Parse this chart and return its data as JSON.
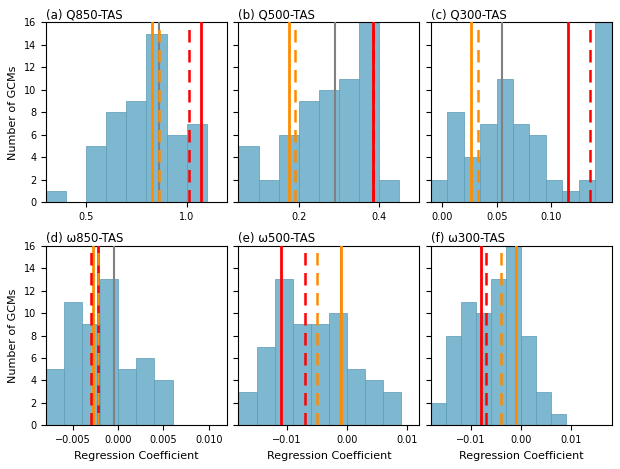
{
  "subplots": [
    {
      "label": "(a) Q850-TAS",
      "xlim": [
        0.3,
        1.2
      ],
      "xticks": [
        0.5,
        1.0
      ],
      "bin_edges": [
        0.3,
        0.4,
        0.5,
        0.6,
        0.7,
        0.8,
        0.9,
        1.0,
        1.1,
        1.2
      ],
      "counts": [
        1,
        0,
        5,
        8,
        9,
        15,
        6,
        7,
        0
      ],
      "vlines": {
        "orange_solid": 0.83,
        "orange_dashed": 0.865,
        "gray": 0.865,
        "red_solid": 1.07,
        "red_dashed": 1.01
      }
    },
    {
      "label": "(b) Q500-TAS",
      "xlim": [
        0.05,
        0.5
      ],
      "xticks": [
        0.2,
        0.4
      ],
      "bin_edges": [
        0.05,
        0.1,
        0.15,
        0.2,
        0.25,
        0.3,
        0.35,
        0.4,
        0.45,
        0.5
      ],
      "counts": [
        5,
        2,
        6,
        9,
        10,
        11,
        16,
        2,
        0
      ],
      "vlines": {
        "orange_solid": 0.175,
        "orange_dashed": 0.19,
        "gray": 0.29,
        "red_solid": 0.385,
        "red_dashed": 0.385
      }
    },
    {
      "label": "(c) Q300-TAS",
      "xlim": [
        -0.01,
        0.155
      ],
      "xticks": [
        0.0,
        0.05,
        0.1
      ],
      "bin_edges": [
        -0.01,
        0.005,
        0.02,
        0.035,
        0.05,
        0.065,
        0.08,
        0.095,
        0.11,
        0.125,
        0.14,
        0.155
      ],
      "counts": [
        2,
        8,
        4,
        7,
        11,
        7,
        6,
        2,
        1,
        2,
        16
      ],
      "vlines": {
        "orange_solid": 0.027,
        "orange_dashed": 0.033,
        "gray": 0.055,
        "red_solid": 0.115,
        "red_dashed": 0.135
      }
    },
    {
      "label": "(d) ω850-TAS",
      "xlim": [
        -0.008,
        0.012
      ],
      "xticks": [
        -0.005,
        0.0,
        0.005,
        0.01
      ],
      "bin_edges": [
        -0.008,
        -0.006,
        -0.004,
        -0.002,
        0.0,
        0.002,
        0.004,
        0.006,
        0.008,
        0.01,
        0.012
      ],
      "counts": [
        5,
        11,
        9,
        13,
        5,
        6,
        4,
        0,
        0,
        0
      ],
      "vlines": {
        "orange_solid": -0.0028,
        "orange_dashed": -0.0023,
        "gray": -0.0005,
        "red_solid": -0.0022,
        "red_dashed": -0.003
      }
    },
    {
      "label": "(e) ω500-TAS",
      "xlim": [
        -0.018,
        0.012
      ],
      "xticks": [
        -0.01,
        0.0,
        0.01
      ],
      "bin_edges": [
        -0.018,
        -0.015,
        -0.012,
        -0.009,
        -0.006,
        -0.003,
        0.0,
        0.003,
        0.006,
        0.009,
        0.012
      ],
      "counts": [
        3,
        7,
        13,
        9,
        9,
        10,
        5,
        4,
        3,
        0
      ],
      "vlines": {
        "orange_solid": -0.001,
        "orange_dashed": -0.005,
        "gray": -0.001,
        "red_solid": -0.011,
        "red_dashed": -0.007
      }
    },
    {
      "label": "(f) ω300-TAS",
      "xlim": [
        -0.018,
        0.018
      ],
      "xticks": [
        -0.01,
        0.0,
        0.01
      ],
      "bin_edges": [
        -0.018,
        -0.015,
        -0.012,
        -0.009,
        -0.006,
        -0.003,
        0.0,
        0.003,
        0.006,
        0.009,
        0.012,
        0.015,
        0.018
      ],
      "counts": [
        2,
        8,
        11,
        10,
        13,
        16,
        8,
        3,
        1,
        0,
        0,
        0
      ],
      "vlines": {
        "orange_solid": -0.001,
        "orange_dashed": -0.004,
        "gray": -0.001,
        "red_solid": -0.008,
        "red_dashed": -0.007
      }
    }
  ],
  "bar_color": "#7eb8d0",
  "bar_edgecolor": "#5a9ab5",
  "ylim": [
    0,
    16
  ],
  "yticks": [
    0,
    2,
    4,
    6,
    8,
    10,
    12,
    14,
    16
  ],
  "ylabel": "Number of GCMs",
  "xlabel": "Regression Coefficient",
  "orange_solid_lw": 2.0,
  "orange_dashed_lw": 1.8,
  "gray_lw": 1.5,
  "red_solid_lw": 2.0,
  "red_dashed_lw": 1.8,
  "figsize": [
    6.2,
    4.69
  ],
  "dpi": 100
}
